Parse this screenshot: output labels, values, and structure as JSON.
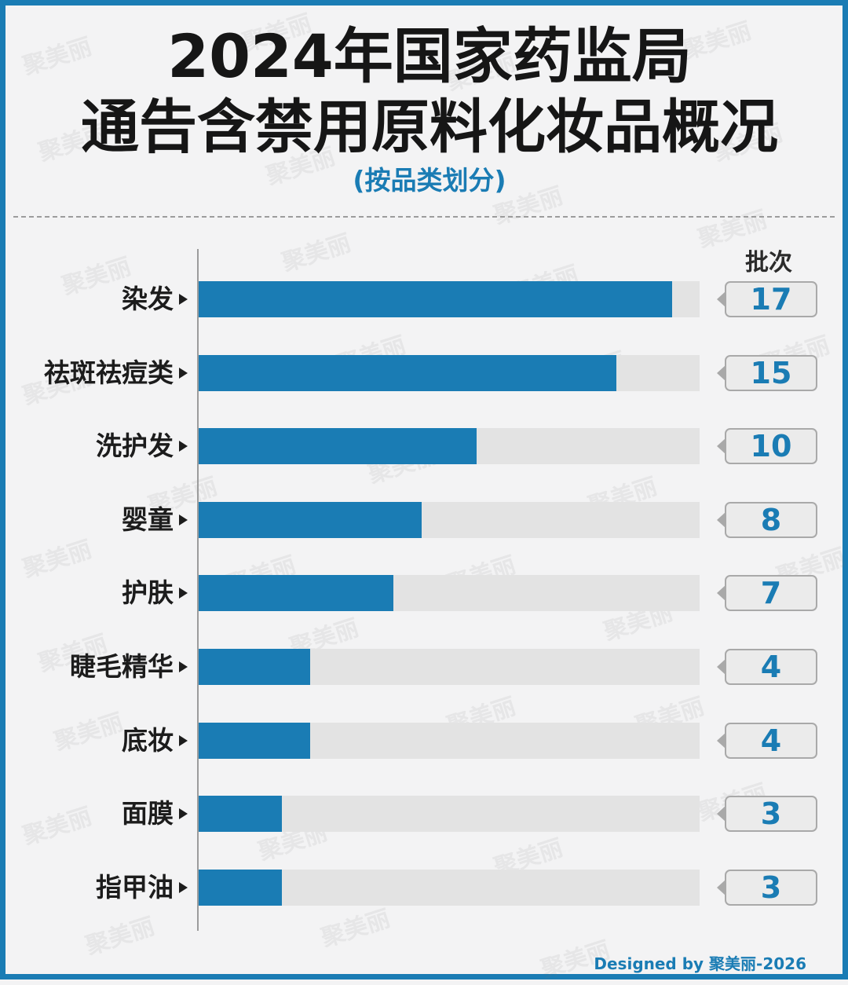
{
  "title_line1": "2024年国家药监局",
  "title_line2": "通告含禁用原料化妆品概况",
  "subtitle": "(按品类划分)",
  "value_header": "批次",
  "credit": "Designed by 聚美丽-2026",
  "watermark": "聚美丽",
  "colors": {
    "bar": "#1a7cb4",
    "track": "#e3e3e3",
    "accent": "#1a7cb4",
    "border": "#1a7cb4"
  },
  "chart_data": {
    "type": "bar",
    "orientation": "horizontal",
    "categories": [
      "染发",
      "祛斑祛痘类",
      "洗护发",
      "婴童",
      "护肤",
      "睫毛精华",
      "底妆",
      "面膜",
      "指甲油"
    ],
    "values": [
      17,
      15,
      10,
      8,
      7,
      4,
      4,
      3,
      3
    ],
    "title": "2024年国家药监局通告含禁用原料化妆品概况",
    "subtitle": "(按品类划分)",
    "value_label": "批次",
    "xlim": [
      0,
      18
    ],
    "grid": false,
    "legend": "none"
  }
}
